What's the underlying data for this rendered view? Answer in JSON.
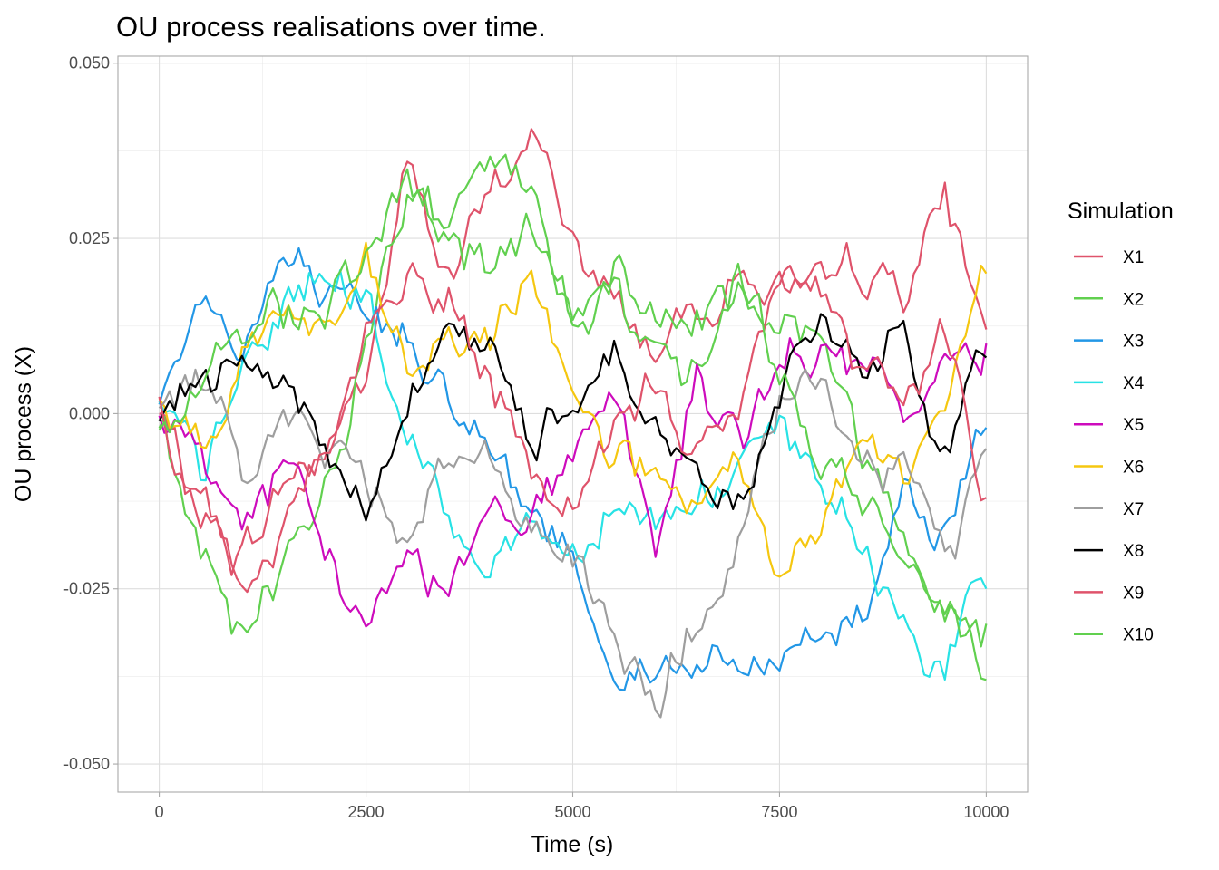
{
  "chart_data": {
    "type": "line",
    "title": "OU process realisations over time.",
    "xlabel": "Time (s)",
    "ylabel": "OU process (X)",
    "xlim": [
      -500,
      10500
    ],
    "ylim": [
      -0.054,
      0.051
    ],
    "x_ticks": [
      0,
      2500,
      5000,
      7500,
      10000
    ],
    "x_tick_labels": [
      "0",
      "2500",
      "5000",
      "7500",
      "10000"
    ],
    "y_ticks": [
      -0.05,
      -0.025,
      0,
      0.025,
      0.05
    ],
    "y_tick_labels": [
      "-0.050",
      "-0.025",
      "0.000",
      "0.025",
      "0.050"
    ],
    "grid": true,
    "legend": {
      "title": "Simulation",
      "position": "right"
    },
    "x": [
      0,
      500,
      1000,
      1500,
      2000,
      2500,
      3000,
      3500,
      4000,
      4500,
      5000,
      5500,
      6000,
      6500,
      7000,
      7500,
      8000,
      8500,
      9000,
      9500,
      10000
    ],
    "series": [
      {
        "name": "X1",
        "color": "#DF536B",
        "values": [
          0.0,
          -0.015,
          -0.02,
          -0.01,
          -0.005,
          0.005,
          0.035,
          0.02,
          0.03,
          0.04,
          0.025,
          0.015,
          0.01,
          0.015,
          0.02,
          0.018,
          0.015,
          0.02,
          0.018,
          0.03,
          0.012
        ]
      },
      {
        "name": "X2",
        "color": "#61D04F",
        "values": [
          0.0,
          -0.02,
          -0.035,
          -0.02,
          -0.01,
          0.01,
          0.035,
          0.025,
          0.035,
          0.03,
          0.015,
          0.018,
          0.01,
          0.005,
          0.02,
          0.015,
          0.012,
          -0.005,
          -0.015,
          -0.025,
          -0.038
        ]
      },
      {
        "name": "X3",
        "color": "#2297E6",
        "values": [
          0.0,
          0.018,
          0.01,
          0.022,
          0.015,
          0.01,
          0.012,
          0.005,
          -0.005,
          -0.015,
          -0.02,
          -0.035,
          -0.036,
          -0.034,
          -0.038,
          -0.035,
          -0.03,
          -0.028,
          -0.01,
          -0.015,
          -0.002
        ]
      },
      {
        "name": "X4",
        "color": "#28E2E5",
        "values": [
          0.0,
          -0.01,
          0.005,
          0.015,
          0.02,
          0.018,
          -0.005,
          -0.015,
          -0.02,
          -0.015,
          -0.02,
          -0.01,
          -0.015,
          -0.012,
          -0.008,
          -0.005,
          -0.01,
          -0.02,
          -0.03,
          -0.035,
          -0.025
        ]
      },
      {
        "name": "X5",
        "color": "#CD0BBC",
        "values": [
          0.0,
          -0.005,
          -0.015,
          -0.01,
          -0.02,
          -0.03,
          -0.02,
          -0.025,
          -0.01,
          -0.015,
          -0.005,
          0.005,
          -0.02,
          0.005,
          -0.005,
          0.005,
          0.01,
          0.005,
          0.0,
          0.005,
          0.01
        ]
      },
      {
        "name": "X6",
        "color": "#F5C710",
        "values": [
          0.0,
          -0.005,
          0.01,
          0.015,
          0.012,
          0.018,
          0.005,
          0.01,
          0.008,
          0.02,
          0.005,
          -0.005,
          -0.01,
          -0.015,
          -0.01,
          -0.025,
          -0.015,
          -0.005,
          -0.01,
          0.0,
          0.02
        ]
      },
      {
        "name": "X7",
        "color": "#9E9E9E",
        "values": [
          0.0,
          0.005,
          -0.005,
          0.0,
          -0.005,
          -0.01,
          -0.015,
          -0.005,
          -0.01,
          -0.015,
          -0.02,
          -0.035,
          -0.04,
          -0.03,
          -0.02,
          0.0,
          0.003,
          -0.005,
          -0.01,
          -0.02,
          -0.005
        ]
      },
      {
        "name": "X8",
        "color": "#000000",
        "values": [
          0.0,
          0.005,
          0.01,
          0.008,
          -0.005,
          -0.015,
          0.005,
          0.012,
          0.008,
          -0.005,
          0.003,
          0.01,
          -0.002,
          -0.01,
          -0.012,
          0.0,
          0.018,
          0.0,
          0.012,
          -0.005,
          0.008
        ]
      },
      {
        "name": "X9",
        "color": "#DF536B",
        "values": [
          0.0,
          -0.01,
          -0.025,
          -0.015,
          -0.005,
          0.01,
          0.02,
          0.015,
          0.005,
          -0.01,
          -0.012,
          -0.005,
          0.005,
          -0.005,
          0.0,
          0.018,
          0.02,
          0.005,
          0.002,
          0.01,
          -0.012
        ]
      },
      {
        "name": "X10",
        "color": "#61D04F",
        "values": [
          0.0,
          0.005,
          0.01,
          0.015,
          0.018,
          0.022,
          0.03,
          0.025,
          0.02,
          0.025,
          0.015,
          0.02,
          0.015,
          0.012,
          0.018,
          0.005,
          -0.005,
          -0.015,
          -0.02,
          -0.025,
          -0.03
        ]
      }
    ]
  }
}
